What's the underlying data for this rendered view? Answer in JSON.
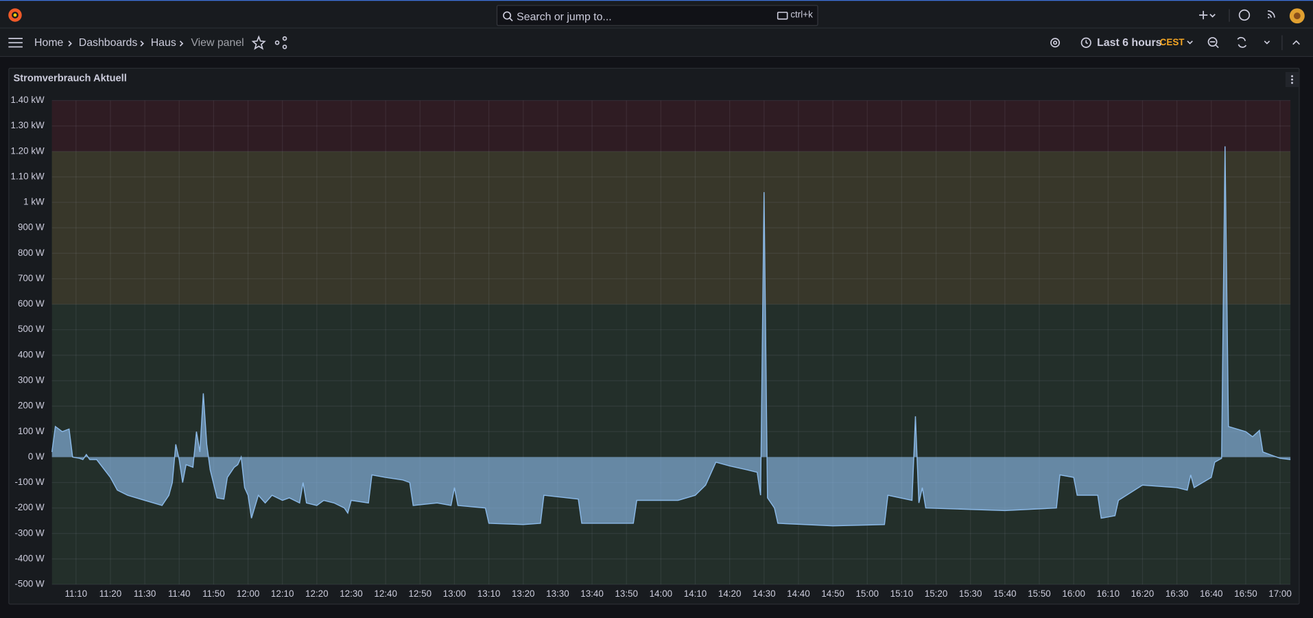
{
  "topbar": {
    "search_placeholder": "Search or jump to...",
    "shortcut": "ctrl+k"
  },
  "breadcrumbs": [
    "Home",
    "Dashboards",
    "Haus",
    "View panel"
  ],
  "time_picker": {
    "range": "Last 6 hours",
    "timezone": "CEST"
  },
  "chart_data": {
    "type": "area",
    "title": "Stromverbrauch Aktuell",
    "xlim": [
      "11:03",
      "17:03"
    ],
    "xticks": [
      "11:10",
      "11:20",
      "11:30",
      "11:40",
      "11:50",
      "12:00",
      "12:10",
      "12:20",
      "12:30",
      "12:40",
      "12:50",
      "13:00",
      "13:10",
      "13:20",
      "13:30",
      "13:40",
      "13:50",
      "14:00",
      "14:10",
      "14:20",
      "14:30",
      "14:40",
      "14:50",
      "15:00",
      "15:10",
      "15:20",
      "15:30",
      "15:40",
      "15:50",
      "16:00",
      "16:10",
      "16:20",
      "16:30",
      "16:40",
      "16:50",
      "17:00"
    ],
    "ylim": [
      -500,
      1400
    ],
    "yticks": [
      {
        "value": 1400,
        "label": "1.40 kW"
      },
      {
        "value": 1300,
        "label": "1.30 kW"
      },
      {
        "value": 1200,
        "label": "1.20 kW"
      },
      {
        "value": 1100,
        "label": "1.10 kW"
      },
      {
        "value": 1000,
        "label": "1 kW"
      },
      {
        "value": 900,
        "label": "900 W"
      },
      {
        "value": 800,
        "label": "800 W"
      },
      {
        "value": 700,
        "label": "700 W"
      },
      {
        "value": 600,
        "label": "600 W"
      },
      {
        "value": 500,
        "label": "500 W"
      },
      {
        "value": 400,
        "label": "400 W"
      },
      {
        "value": 300,
        "label": "300 W"
      },
      {
        "value": 200,
        "label": "200 W"
      },
      {
        "value": 100,
        "label": "100 W"
      },
      {
        "value": 0,
        "label": "0 W"
      },
      {
        "value": -100,
        "label": "-100 W"
      },
      {
        "value": -200,
        "label": "-200 W"
      },
      {
        "value": -300,
        "label": "-300 W"
      },
      {
        "value": -400,
        "label": "-400 W"
      },
      {
        "value": -500,
        "label": "-500 W"
      }
    ],
    "grid": true,
    "threshold_base_color": "#232f2a",
    "thresholds": [
      {
        "value": 600,
        "color": "#38372a"
      },
      {
        "value": 1200,
        "color": "#2f1c23"
      }
    ],
    "series": [
      {
        "color": "#8ab8e6",
        "x": [
          "11:03",
          "11:04",
          "11:06",
          "11:08",
          "11:09",
          "11:11",
          "11:12",
          "11:13",
          "11:14",
          "11:16",
          "11:20",
          "11:22",
          "11:25",
          "11:30",
          "11:35",
          "11:37",
          "11:38",
          "11:39",
          "11:40",
          "11:41",
          "11:42",
          "11:44",
          "11:45",
          "11:46",
          "11:47",
          "11:48",
          "11:49",
          "11:51",
          "11:53",
          "11:54",
          "11:56",
          "11:57",
          "11:58",
          "11:59",
          "12:00",
          "12:01",
          "12:03",
          "12:05",
          "12:07",
          "12:10",
          "12:12",
          "12:15",
          "12:16",
          "12:17",
          "12:20",
          "12:22",
          "12:25",
          "12:28",
          "12:29",
          "12:30",
          "12:35",
          "12:36",
          "12:40",
          "12:45",
          "12:47",
          "12:48",
          "12:55",
          "12:59",
          "13:00",
          "13:01",
          "13:09",
          "13:10",
          "13:20",
          "13:25",
          "13:26",
          "13:36",
          "13:37",
          "13:52",
          "13:53",
          "14:05",
          "14:10",
          "14:13",
          "14:16",
          "14:20",
          "14:25",
          "14:28",
          "14:29",
          "14:30",
          "14:31",
          "14:33",
          "14:34",
          "14:50",
          "15:05",
          "15:06",
          "15:13",
          "15:14",
          "15:15",
          "15:16",
          "15:17",
          "15:40",
          "15:55",
          "15:56",
          "16:00",
          "16:01",
          "16:07",
          "16:08",
          "16:12",
          "16:13",
          "16:20",
          "16:30",
          "16:33",
          "16:34",
          "16:35",
          "16:40",
          "16:41",
          "16:43",
          "16:44",
          "16:45",
          "16:50",
          "16:52",
          "16:54",
          "16:55",
          "16:58",
          "17:00",
          "17:03"
        ],
        "values": [
          20,
          120,
          100,
          110,
          0,
          -5,
          -10,
          10,
          -10,
          -10,
          -80,
          -130,
          -150,
          -170,
          -190,
          -150,
          -100,
          50,
          -10,
          -100,
          -30,
          -40,
          100,
          20,
          250,
          50,
          -50,
          -160,
          -165,
          -80,
          -40,
          -30,
          0,
          -120,
          -150,
          -240,
          -150,
          -180,
          -150,
          -170,
          -160,
          -180,
          -100,
          -180,
          -190,
          -170,
          -180,
          -200,
          -220,
          -170,
          -180,
          -70,
          -80,
          -90,
          -100,
          -190,
          -180,
          -190,
          -120,
          -190,
          -200,
          -260,
          -265,
          -260,
          -150,
          -165,
          -260,
          -260,
          -170,
          -170,
          -150,
          -110,
          -20,
          -35,
          -50,
          -60,
          -150,
          1040,
          -160,
          -200,
          -260,
          -270,
          -265,
          -150,
          -170,
          160,
          -180,
          -120,
          -200,
          -210,
          -200,
          -70,
          -80,
          -150,
          -150,
          -240,
          -230,
          -170,
          -110,
          -120,
          -130,
          -70,
          -120,
          -80,
          -20,
          -5,
          1220,
          120,
          100,
          80,
          105,
          20,
          5,
          -5,
          -10
        ]
      }
    ]
  }
}
